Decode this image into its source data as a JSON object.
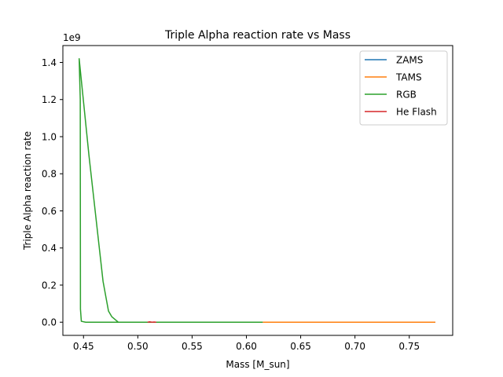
{
  "chart_data": {
    "type": "line",
    "title": "Triple Alpha reaction rate vs Mass",
    "xlabel": "Mass [M_sun]",
    "ylabel": "Triple Alpha reaction rate",
    "y_offset_label": "1e9",
    "xlim": [
      0.431,
      0.79
    ],
    "ylim": [
      -0.071,
      1.491
    ],
    "x_ticks": [
      0.45,
      0.5,
      0.55,
      0.6,
      0.65,
      0.7,
      0.75
    ],
    "x_tick_labels": [
      "0.45",
      "0.50",
      "0.55",
      "0.60",
      "0.65",
      "0.70",
      "0.75"
    ],
    "y_ticks": [
      0.0,
      0.2,
      0.4,
      0.6,
      0.8,
      1.0,
      1.2,
      1.4
    ],
    "y_tick_labels": [
      "0.0",
      "0.2",
      "0.4",
      "0.6",
      "0.8",
      "1.0",
      "1.2",
      "1.4"
    ],
    "grid": false,
    "legend_position": "top-right",
    "series": [
      {
        "name": "ZAMS",
        "color": "#1f77b4",
        "x": [
          0.615,
          0.65,
          0.7,
          0.75,
          0.774
        ],
        "y": [
          0,
          0,
          0,
          0,
          0
        ]
      },
      {
        "name": "TAMS",
        "color": "#ff7f0e",
        "x": [
          0.615,
          0.65,
          0.7,
          0.75,
          0.774
        ],
        "y": [
          0,
          0,
          0,
          0,
          0
        ]
      },
      {
        "name": "RGB",
        "color": "#2ca02c",
        "x": [
          0.615,
          0.58,
          0.55,
          0.52,
          0.5,
          0.482,
          0.476,
          0.473,
          0.468,
          0.455,
          0.446,
          0.447,
          0.4472,
          0.448,
          0.452,
          0.46,
          0.48,
          0.5,
          0.55,
          0.581
        ],
        "y": [
          0.0,
          0.0,
          0.0,
          0.0,
          0.0,
          0.0,
          0.03,
          0.06,
          0.22,
          0.9,
          1.42,
          1.2,
          0.07,
          0.005,
          0.0,
          0.0,
          0.0,
          0.0,
          0.0,
          0.0
        ]
      },
      {
        "name": "He Flash",
        "color": "#d62728",
        "x": [
          0.509,
          0.511,
          0.513,
          0.515,
          0.517
        ],
        "y": [
          0.0,
          0.002,
          0.0,
          0.001,
          0.0
        ]
      }
    ]
  }
}
